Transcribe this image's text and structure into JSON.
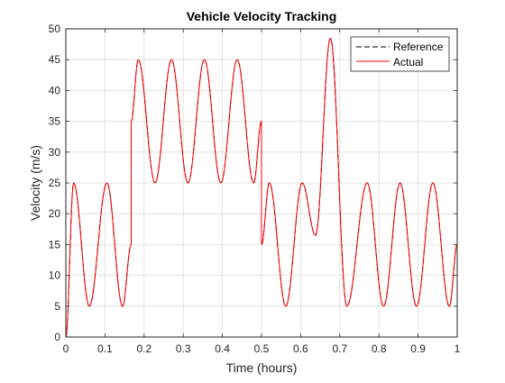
{
  "chart_data": {
    "type": "line",
    "title": "Vehicle Velocity Tracking",
    "xlabel": "Time (hours)",
    "ylabel": "Velocity (m/s)",
    "xlim": [
      0,
      1
    ],
    "ylim": [
      0,
      50
    ],
    "xticks": [
      0,
      0.1,
      0.2,
      0.3,
      0.4,
      0.5,
      0.6,
      0.7,
      0.8,
      0.9,
      1
    ],
    "xtick_labels": [
      "0",
      "0.1",
      "0.2",
      "0.3",
      "0.4",
      "0.5",
      "0.6",
      "0.7",
      "0.8",
      "0.9",
      "1"
    ],
    "yticks": [
      0,
      5,
      10,
      15,
      20,
      25,
      30,
      35,
      40,
      45,
      50
    ],
    "ytick_labels": [
      "0",
      "5",
      "10",
      "15",
      "20",
      "25",
      "30",
      "35",
      "40",
      "45",
      "50"
    ],
    "grid": true,
    "legend_position": "top-right",
    "series": [
      {
        "name": "Reference",
        "color": "#000000",
        "style": "dashed",
        "x": [
          0,
          0.02,
          0.06,
          0.105,
          0.145,
          0.167,
          0.167,
          0.185,
          0.228,
          0.27,
          0.312,
          0.354,
          0.396,
          0.438,
          0.48,
          0.5,
          0.5,
          0.52,
          0.562,
          0.604,
          0.638,
          0.676,
          0.718,
          0.77,
          0.812,
          0.854,
          0.896,
          0.938,
          0.98,
          1
        ],
        "y": [
          0,
          25,
          5,
          25,
          5,
          15,
          35,
          45,
          25,
          45,
          25,
          45,
          25,
          45,
          25,
          35,
          15,
          25,
          5,
          25,
          16.5,
          48.5,
          5,
          25,
          5,
          25,
          5,
          25,
          5,
          15
        ]
      },
      {
        "name": "Actual",
        "color": "#ff0000",
        "style": "solid",
        "x": [
          0,
          0.02,
          0.06,
          0.105,
          0.145,
          0.167,
          0.167,
          0.185,
          0.228,
          0.27,
          0.312,
          0.354,
          0.396,
          0.438,
          0.48,
          0.5,
          0.5,
          0.52,
          0.562,
          0.604,
          0.638,
          0.676,
          0.718,
          0.77,
          0.812,
          0.854,
          0.896,
          0.938,
          0.98,
          1
        ],
        "y": [
          0,
          25,
          5,
          25,
          5,
          15,
          35,
          45,
          25,
          45,
          25,
          45,
          25,
          45,
          25,
          35,
          15,
          25,
          5,
          25,
          16.5,
          48.5,
          5,
          25,
          5,
          25,
          5,
          25,
          5,
          15
        ]
      }
    ]
  }
}
